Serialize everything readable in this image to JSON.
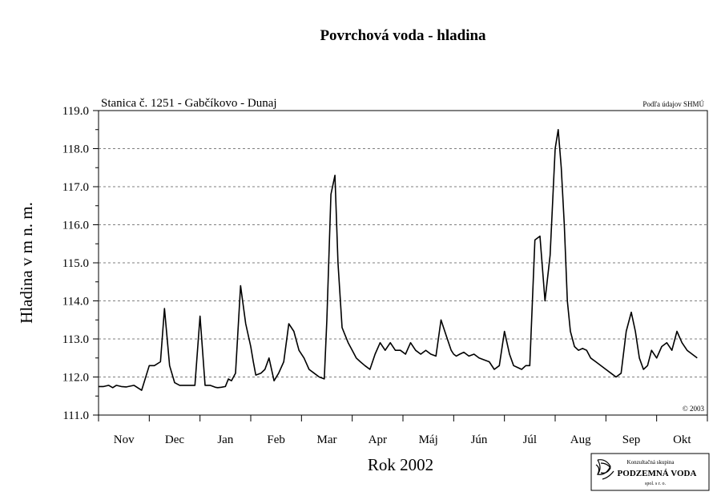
{
  "chart_data": {
    "type": "line",
    "title": "Povrchová voda - hladina",
    "station": "Stanica č. 1251 - Gabčíkovo - Dunaj",
    "source_note": "Podľa údajov SHMÚ",
    "copyright": "© 2003",
    "xlabel": "Rok 2002",
    "ylabel": "Hladina v m n. m.",
    "ylim": [
      111.0,
      119.0
    ],
    "yticks": [
      "111.0",
      "112.0",
      "113.0",
      "114.0",
      "115.0",
      "116.0",
      "117.0",
      "118.0",
      "119.0"
    ],
    "months": [
      "Nov",
      "Dec",
      "Jan",
      "Feb",
      "Mar",
      "Apr",
      "Máj",
      "Jún",
      "Júl",
      "Aug",
      "Sep",
      "Okt"
    ],
    "grid": "horizontal dashed",
    "line_color": "#000000",
    "series": [
      {
        "x_month_index": [
          0.0,
          0.1,
          0.2,
          0.28,
          0.35,
          0.45,
          0.55,
          0.7,
          0.85,
          1.0,
          1.1,
          1.22,
          1.3,
          1.4,
          1.5,
          1.6,
          1.7,
          1.8,
          1.9,
          2.0,
          2.1,
          2.2,
          2.3,
          2.35,
          2.42,
          2.5,
          2.56,
          2.62,
          2.7,
          2.8,
          2.9,
          3.0,
          3.05,
          3.1,
          3.2,
          3.28,
          3.36,
          3.46,
          3.55,
          3.65,
          3.75,
          3.85,
          3.95,
          4.05,
          4.15,
          4.25,
          4.35,
          4.45,
          4.5,
          4.58,
          4.66,
          4.72,
          4.8,
          4.86,
          4.92,
          5.0,
          5.08,
          5.16,
          5.25,
          5.35,
          5.45,
          5.55,
          5.65,
          5.75,
          5.85,
          5.95,
          6.05,
          6.15,
          6.25,
          6.35,
          6.45,
          6.55,
          6.65,
          6.75,
          6.85,
          6.95,
          7.0,
          7.05,
          7.12,
          7.2,
          7.3,
          7.4,
          7.5,
          7.6,
          7.7,
          7.8,
          7.9,
          8.0,
          8.1,
          8.18,
          8.26,
          8.34,
          8.42,
          8.5,
          8.6,
          8.7,
          8.8,
          8.9,
          9.0,
          9.06,
          9.12,
          9.18,
          9.24,
          9.3,
          9.38,
          9.46,
          9.54,
          9.62,
          9.7,
          9.8,
          9.9,
          10.0,
          10.1,
          10.2,
          10.3,
          10.4,
          10.5,
          10.58,
          10.66,
          10.74,
          10.82,
          10.9,
          11.0,
          11.1,
          11.2,
          11.3,
          11.4,
          11.5,
          11.6,
          11.7,
          11.8,
          11.9,
          12.0
        ],
        "values": [
          111.75,
          111.75,
          111.78,
          111.72,
          111.78,
          111.75,
          111.74,
          111.78,
          111.65,
          112.3,
          112.3,
          112.4,
          113.8,
          112.3,
          111.85,
          111.78,
          111.78,
          111.78,
          111.78,
          113.6,
          111.78,
          111.78,
          111.73,
          111.72,
          111.73,
          111.75,
          111.95,
          111.9,
          112.1,
          114.4,
          113.4,
          112.8,
          112.4,
          112.05,
          112.1,
          112.2,
          112.5,
          111.9,
          112.1,
          112.4,
          113.4,
          113.2,
          112.7,
          112.5,
          112.2,
          112.1,
          112.0,
          111.95,
          113.5,
          116.8,
          117.3,
          115.0,
          113.3,
          113.1,
          112.9,
          112.7,
          112.5,
          112.4,
          112.3,
          112.2,
          112.6,
          112.9,
          112.7,
          112.9,
          112.7,
          112.7,
          112.6,
          112.9,
          112.7,
          112.6,
          112.7,
          112.6,
          112.55,
          113.5,
          113.1,
          112.7,
          112.6,
          112.55,
          112.6,
          112.65,
          112.55,
          112.6,
          112.5,
          112.45,
          112.4,
          112.2,
          112.3,
          113.2,
          112.6,
          112.3,
          112.25,
          112.2,
          112.3,
          112.3,
          115.6,
          115.7,
          114.0,
          115.2,
          118.0,
          118.5,
          117.5,
          116.0,
          114.0,
          113.2,
          112.8,
          112.7,
          112.75,
          112.7,
          112.5,
          112.4,
          112.3,
          112.2,
          112.1,
          112.0,
          112.1,
          113.2,
          113.7,
          113.2,
          112.5,
          112.2,
          112.3,
          112.7,
          112.5,
          112.8,
          112.9,
          112.7,
          113.2,
          112.9,
          112.7,
          112.6,
          112.5
        ]
      }
    ]
  },
  "logo": {
    "line1": "Konzultačná skupina",
    "line2": "PODZEMNÁ VODA",
    "line3": "spol. s r. o."
  }
}
